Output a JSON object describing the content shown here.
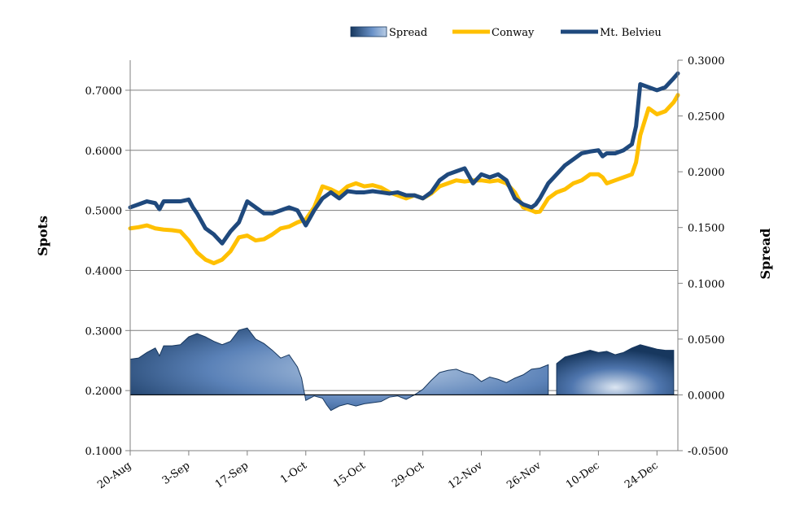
{
  "chart_data": {
    "type": "line",
    "title": "",
    "legend": {
      "position": "top-right",
      "entries": [
        "Spread",
        "Conway",
        "Mt. Belvieu"
      ]
    },
    "y_left": {
      "label": "Spots",
      "min": 0.1,
      "max": 0.75,
      "ticks": [
        "0.1000",
        "0.2000",
        "0.3000",
        "0.4000",
        "0.5000",
        "0.6000",
        "0.7000"
      ],
      "tick_values": [
        0.1,
        0.2,
        0.3,
        0.4,
        0.5,
        0.6,
        0.7
      ]
    },
    "y_right": {
      "label": "Spread",
      "min": -0.05,
      "max": 0.3,
      "ticks": [
        "-0.0500",
        "0.0000",
        "0.0500",
        "0.1000",
        "0.1500",
        "0.2000",
        "0.2500",
        "0.3000"
      ],
      "tick_values": [
        -0.05,
        0.0,
        0.05,
        0.1,
        0.15,
        0.2,
        0.25,
        0.3
      ]
    },
    "x_axis": {
      "ticks": [
        "20-Aug",
        "3-Sep",
        "17-Sep",
        "1-Oct",
        "15-Oct",
        "29-Oct",
        "12-Nov",
        "26-Nov",
        "10-Dec",
        "24-Dec"
      ],
      "tick_days": [
        0,
        14,
        28,
        42,
        56,
        70,
        84,
        98,
        112,
        126
      ],
      "max_day": 131
    },
    "grid": "horizontal",
    "colors": {
      "conway": "#FFC000",
      "mt_belvieu": "#1F497D",
      "spread_dark": "#17375E",
      "spread_light": "#95B3D7"
    },
    "series": [
      {
        "name": "Conway",
        "axis": "left",
        "x": [
          0,
          2,
          4,
          6,
          8,
          10,
          12,
          14,
          16,
          18,
          20,
          22,
          24,
          26,
          28,
          30,
          32,
          34,
          36,
          38,
          40,
          42,
          44,
          46,
          48,
          50,
          52,
          54,
          56,
          58,
          60,
          62,
          64,
          66,
          68,
          70,
          72,
          74,
          76,
          78,
          80,
          82,
          84,
          86,
          88,
          90,
          92,
          94,
          96,
          97,
          98,
          100,
          102,
          104,
          106,
          108,
          110,
          112,
          113,
          114,
          116,
          118,
          120,
          121,
          122,
          124,
          126,
          128,
          130,
          131
        ],
        "y": [
          0.47,
          0.472,
          0.475,
          0.47,
          0.468,
          0.467,
          0.465,
          0.45,
          0.43,
          0.418,
          0.412,
          0.418,
          0.432,
          0.455,
          0.458,
          0.45,
          0.452,
          0.46,
          0.47,
          0.473,
          0.48,
          0.485,
          0.505,
          0.54,
          0.535,
          0.528,
          0.54,
          0.545,
          0.54,
          0.542,
          0.538,
          0.53,
          0.525,
          0.52,
          0.525,
          0.52,
          0.528,
          0.54,
          0.545,
          0.55,
          0.548,
          0.55,
          0.55,
          0.548,
          0.55,
          0.545,
          0.53,
          0.505,
          0.5,
          0.497,
          0.498,
          0.52,
          0.53,
          0.535,
          0.545,
          0.55,
          0.56,
          0.56,
          0.555,
          0.545,
          0.55,
          0.555,
          0.56,
          0.58,
          0.625,
          0.67,
          0.66,
          0.665,
          0.68,
          0.692
        ]
      },
      {
        "name": "Mt. Belvieu",
        "axis": "left",
        "x": [
          0,
          2,
          4,
          6,
          7,
          8,
          10,
          12,
          14,
          15,
          16,
          18,
          20,
          22,
          24,
          26,
          28,
          30,
          32,
          34,
          36,
          38,
          40,
          42,
          44,
          46,
          48,
          50,
          52,
          54,
          56,
          58,
          60,
          62,
          64,
          66,
          68,
          70,
          72,
          74,
          76,
          78,
          80,
          82,
          84,
          86,
          88,
          90,
          92,
          94,
          96,
          97,
          98,
          100,
          102,
          104,
          106,
          108,
          110,
          112,
          113,
          114,
          116,
          118,
          120,
          121,
          122,
          124,
          126,
          128,
          130,
          131
        ],
        "y": [
          0.505,
          0.51,
          0.515,
          0.512,
          0.502,
          0.515,
          0.515,
          0.515,
          0.518,
          0.505,
          0.495,
          0.47,
          0.46,
          0.445,
          0.465,
          0.48,
          0.515,
          0.505,
          0.495,
          0.495,
          0.5,
          0.505,
          0.5,
          0.475,
          0.5,
          0.52,
          0.53,
          0.52,
          0.532,
          0.53,
          0.53,
          0.532,
          0.53,
          0.528,
          0.53,
          0.525,
          0.525,
          0.52,
          0.53,
          0.55,
          0.56,
          0.565,
          0.57,
          0.545,
          0.56,
          0.555,
          0.56,
          0.55,
          0.52,
          0.51,
          0.505,
          0.51,
          0.52,
          0.545,
          0.56,
          0.575,
          0.585,
          0.595,
          0.598,
          0.6,
          0.59,
          0.595,
          0.595,
          0.6,
          0.61,
          0.64,
          0.71,
          0.705,
          0.7,
          0.705,
          0.72,
          0.728
        ]
      },
      {
        "name": "Spread",
        "axis": "right",
        "segments": [
          {
            "x": [
              0,
              2,
              4,
              6,
              7,
              8,
              10,
              12,
              14,
              16,
              18,
              20,
              22,
              24,
              26,
              28,
              30,
              32,
              34,
              36,
              38,
              40,
              41,
              42,
              44,
              46,
              47,
              48,
              50,
              52,
              54,
              56,
              58,
              60,
              62,
              64,
              66,
              68,
              70,
              72,
              74,
              76,
              78,
              80,
              82,
              84,
              86,
              88,
              90,
              92,
              94,
              96,
              98,
              100
            ],
            "y": [
              0.032,
              0.033,
              0.038,
              0.042,
              0.035,
              0.044,
              0.044,
              0.045,
              0.052,
              0.055,
              0.052,
              0.048,
              0.045,
              0.048,
              0.058,
              0.06,
              0.05,
              0.046,
              0.04,
              0.033,
              0.036,
              0.025,
              0.015,
              -0.005,
              -0.001,
              -0.003,
              -0.009,
              -0.014,
              -0.01,
              -0.008,
              -0.01,
              -0.008,
              -0.007,
              -0.006,
              -0.002,
              -0.001,
              -0.004,
              0.0,
              0.005,
              0.013,
              0.02,
              0.022,
              0.023,
              0.02,
              0.018,
              0.012,
              0.016,
              0.014,
              0.011,
              0.015,
              0.018,
              0.023,
              0.024,
              0.027
            ]
          },
          {
            "x": [
              102,
              104,
              106,
              108,
              110,
              112,
              114,
              116,
              118,
              120,
              122,
              124,
              126,
              128,
              130
            ],
            "y": [
              0.028,
              0.034,
              0.036,
              0.038,
              0.04,
              0.038,
              0.039,
              0.036,
              0.038,
              0.042,
              0.045,
              0.043,
              0.041,
              0.04,
              0.04
            ]
          }
        ]
      }
    ]
  }
}
